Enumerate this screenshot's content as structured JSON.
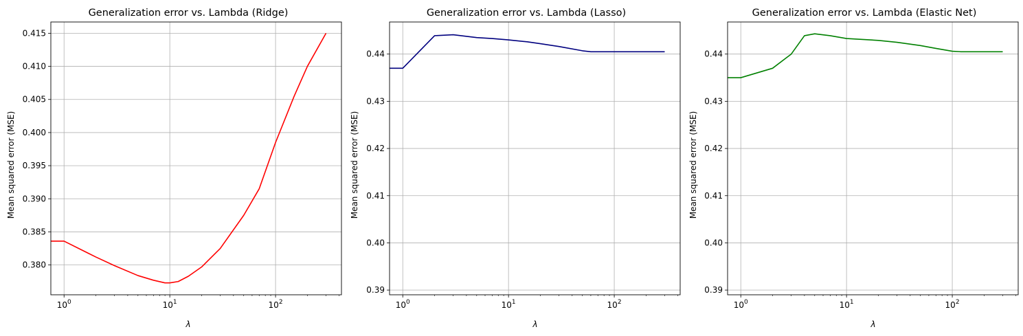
{
  "chart_data": [
    {
      "type": "line",
      "title": "Generalization error vs. Lambda (Ridge)",
      "xlabel": "λ",
      "ylabel": "Mean squared error (MSE)",
      "xscale": "log",
      "xlim": [
        0.75,
        420
      ],
      "ylim": [
        0.3755,
        0.4167
      ],
      "xticks": [
        {
          "value": 1,
          "label": "10^0"
        },
        {
          "value": 10,
          "label": "10^1"
        },
        {
          "value": 100,
          "label": "10^2"
        }
      ],
      "yticks": [
        0.38,
        0.385,
        0.39,
        0.395,
        0.4,
        0.405,
        0.41,
        0.415
      ],
      "ytick_labels": [
        "0.380",
        "0.385",
        "0.390",
        "0.395",
        "0.400",
        "0.405",
        "0.410",
        "0.415"
      ],
      "grid": true,
      "series": [
        {
          "color": "#ff0000",
          "x": [
            0.01,
            1,
            2,
            3,
            5,
            7,
            9,
            10,
            12,
            15,
            20,
            30,
            50,
            70,
            100,
            150,
            200,
            300
          ],
          "y": [
            0.3836,
            0.3836,
            0.3812,
            0.3799,
            0.3784,
            0.3777,
            0.3773,
            0.3773,
            0.3775,
            0.3783,
            0.3797,
            0.3825,
            0.3875,
            0.3915,
            0.3985,
            0.4055,
            0.41,
            0.415
          ]
        }
      ]
    },
    {
      "type": "line",
      "title": "Generalization error vs. Lambda (Lasso)",
      "xlabel": "λ",
      "ylabel": "Mean squared error (MSE)",
      "xscale": "log",
      "xlim": [
        0.75,
        420
      ],
      "ylim": [
        0.389,
        0.4468
      ],
      "xticks": [
        {
          "value": 1,
          "label": "10^0"
        },
        {
          "value": 10,
          "label": "10^1"
        },
        {
          "value": 100,
          "label": "10^2"
        }
      ],
      "yticks": [
        0.39,
        0.4,
        0.41,
        0.42,
        0.43,
        0.44
      ],
      "ytick_labels": [
        "0.39",
        "0.40",
        "0.41",
        "0.42",
        "0.43",
        "0.44"
      ],
      "grid": true,
      "series": [
        {
          "color": "#00007f",
          "x": [
            0.01,
            1,
            2,
            3,
            5,
            7,
            10,
            15,
            20,
            30,
            50,
            60,
            100,
            200,
            300
          ],
          "y": [
            0.437,
            0.437,
            0.4439,
            0.4441,
            0.4435,
            0.4433,
            0.443,
            0.4426,
            0.4422,
            0.4416,
            0.4407,
            0.4405,
            0.4405,
            0.4405,
            0.4405
          ]
        }
      ]
    },
    {
      "type": "line",
      "title": "Generalization error vs. Lambda (Elastic Net)",
      "xlabel": "λ",
      "ylabel": "Mean squared error (MSE)",
      "xscale": "log",
      "xlim": [
        0.75,
        420
      ],
      "ylim": [
        0.389,
        0.4468
      ],
      "xticks": [
        {
          "value": 1,
          "label": "10^0"
        },
        {
          "value": 10,
          "label": "10^1"
        },
        {
          "value": 100,
          "label": "10^2"
        }
      ],
      "yticks": [
        0.39,
        0.4,
        0.41,
        0.42,
        0.43,
        0.44
      ],
      "ytick_labels": [
        "0.39",
        "0.40",
        "0.41",
        "0.42",
        "0.43",
        "0.44"
      ],
      "grid": true,
      "series": [
        {
          "color": "#008000",
          "x": [
            0.01,
            1,
            2,
            3,
            4,
            5,
            7,
            10,
            20,
            30,
            50,
            70,
            100,
            120,
            200,
            300
          ],
          "y": [
            0.435,
            0.435,
            0.437,
            0.44,
            0.4439,
            0.4443,
            0.4439,
            0.4433,
            0.4429,
            0.4425,
            0.4418,
            0.4412,
            0.4406,
            0.4405,
            0.4405,
            0.4405
          ]
        }
      ]
    }
  ]
}
